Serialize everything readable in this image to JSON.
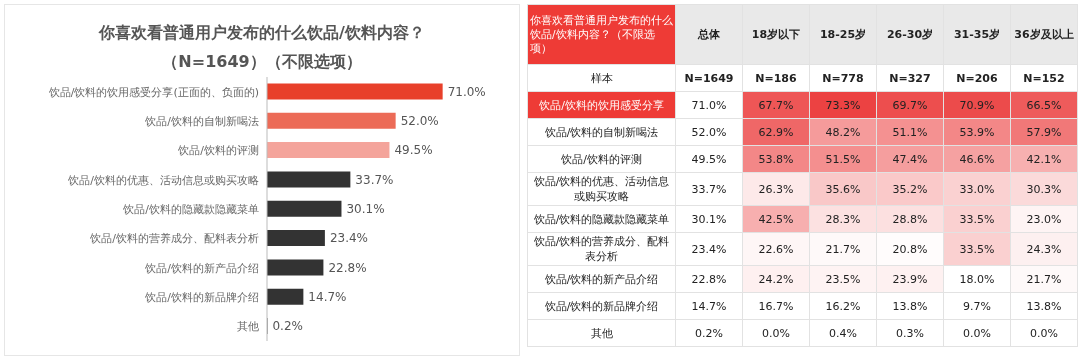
{
  "chart_data": [
    {
      "type": "bar",
      "orientation": "horizontal",
      "title": "你喜欢看普通用户发布的什么饮品/饮料内容？",
      "subtitle": "（N=1649）（不限选项）",
      "categories": [
        "饮品/饮料的饮用感受分享(正面的、负面的)",
        "饮品/饮料的自制新喝法",
        "饮品/饮料的评测",
        "饮品/饮料的优惠、活动信息或购买攻略",
        "饮品/饮料的隐藏款隐藏菜单",
        "饮品/饮料的营养成分、配料表分析",
        "饮品/饮料的新产品介绍",
        "饮品/饮料的新品牌介绍",
        "其他"
      ],
      "values": [
        71.0,
        52.0,
        49.5,
        33.7,
        30.1,
        23.4,
        22.8,
        14.7,
        0.2
      ],
      "colors": [
        "#e8402a",
        "#ec6b57",
        "#f4a49b",
        "#333333",
        "#333333",
        "#333333",
        "#333333",
        "#333333",
        "#333333"
      ],
      "value_labels": [
        "71.0%",
        "52.0%",
        "49.5%",
        "33.7%",
        "30.1%",
        "23.4%",
        "22.8%",
        "14.7%",
        "0.2%"
      ],
      "tick_labels": "y"
    },
    {
      "type": "heatmap",
      "title": "你喜欢看普通用户发布的什么饮品/饮料内容？（不限选项）",
      "categories": [
        "总体",
        "18岁以下",
        "18-25岁",
        "26-30岁",
        "31-35岁",
        "36岁及以上"
      ],
      "y_categories": [
        "样本",
        "饮品/饮料的饮用感受分享",
        "饮品/饮料的自制新喝法",
        "饮品/饮料的评测",
        "饮品/饮料的优惠、活动信息或购买攻略",
        "饮品/饮料的隐藏款隐藏菜单",
        "饮品/饮料的营养成分、配料表分析",
        "饮品/饮料的新产品介绍",
        "饮品/饮料的新品牌介绍",
        "其他"
      ],
      "cells": [
        [
          1649,
          186,
          778,
          327,
          206,
          152
        ],
        [
          71.0,
          67.7,
          73.3,
          69.7,
          70.9,
          66.5
        ],
        [
          52.0,
          62.9,
          48.2,
          51.1,
          53.9,
          57.9
        ],
        [
          49.5,
          53.8,
          51.5,
          47.4,
          46.6,
          42.1
        ],
        [
          33.7,
          26.3,
          35.6,
          35.2,
          33.0,
          30.3
        ],
        [
          30.1,
          42.5,
          28.3,
          28.8,
          33.5,
          23.0
        ],
        [
          23.4,
          22.6,
          21.7,
          20.8,
          33.5,
          24.3
        ],
        [
          22.8,
          24.2,
          23.5,
          23.9,
          18.0,
          21.7
        ],
        [
          14.7,
          16.7,
          16.2,
          13.8,
          9.7,
          13.8
        ],
        [
          0.2,
          0.0,
          0.4,
          0.3,
          0.0,
          0.0
        ]
      ],
      "cell_labels": [
        [
          "N=1649",
          "N=186",
          "N=778",
          "N=327",
          "N=206",
          "N=152"
        ],
        [
          "71.0%",
          "67.7%",
          "73.3%",
          "69.7%",
          "70.9%",
          "66.5%"
        ],
        [
          "52.0%",
          "62.9%",
          "48.2%",
          "51.1%",
          "53.9%",
          "57.9%"
        ],
        [
          "49.5%",
          "53.8%",
          "51.5%",
          "47.4%",
          "46.6%",
          "42.1%"
        ],
        [
          "33.7%",
          "26.3%",
          "35.6%",
          "35.2%",
          "33.0%",
          "30.3%"
        ],
        [
          "30.1%",
          "42.5%",
          "28.3%",
          "28.8%",
          "33.5%",
          "23.0%"
        ],
        [
          "23.4%",
          "22.6%",
          "21.7%",
          "20.8%",
          "33.5%",
          "24.3%"
        ],
        [
          "22.8%",
          "24.2%",
          "23.5%",
          "23.9%",
          "18.0%",
          "21.7%"
        ],
        [
          "14.7%",
          "16.7%",
          "16.2%",
          "13.8%",
          "9.7%",
          "13.8%"
        ],
        [
          "0.2%",
          "0.0%",
          "0.4%",
          "0.3%",
          "0.0%",
          "0.0%"
        ]
      ]
    }
  ]
}
